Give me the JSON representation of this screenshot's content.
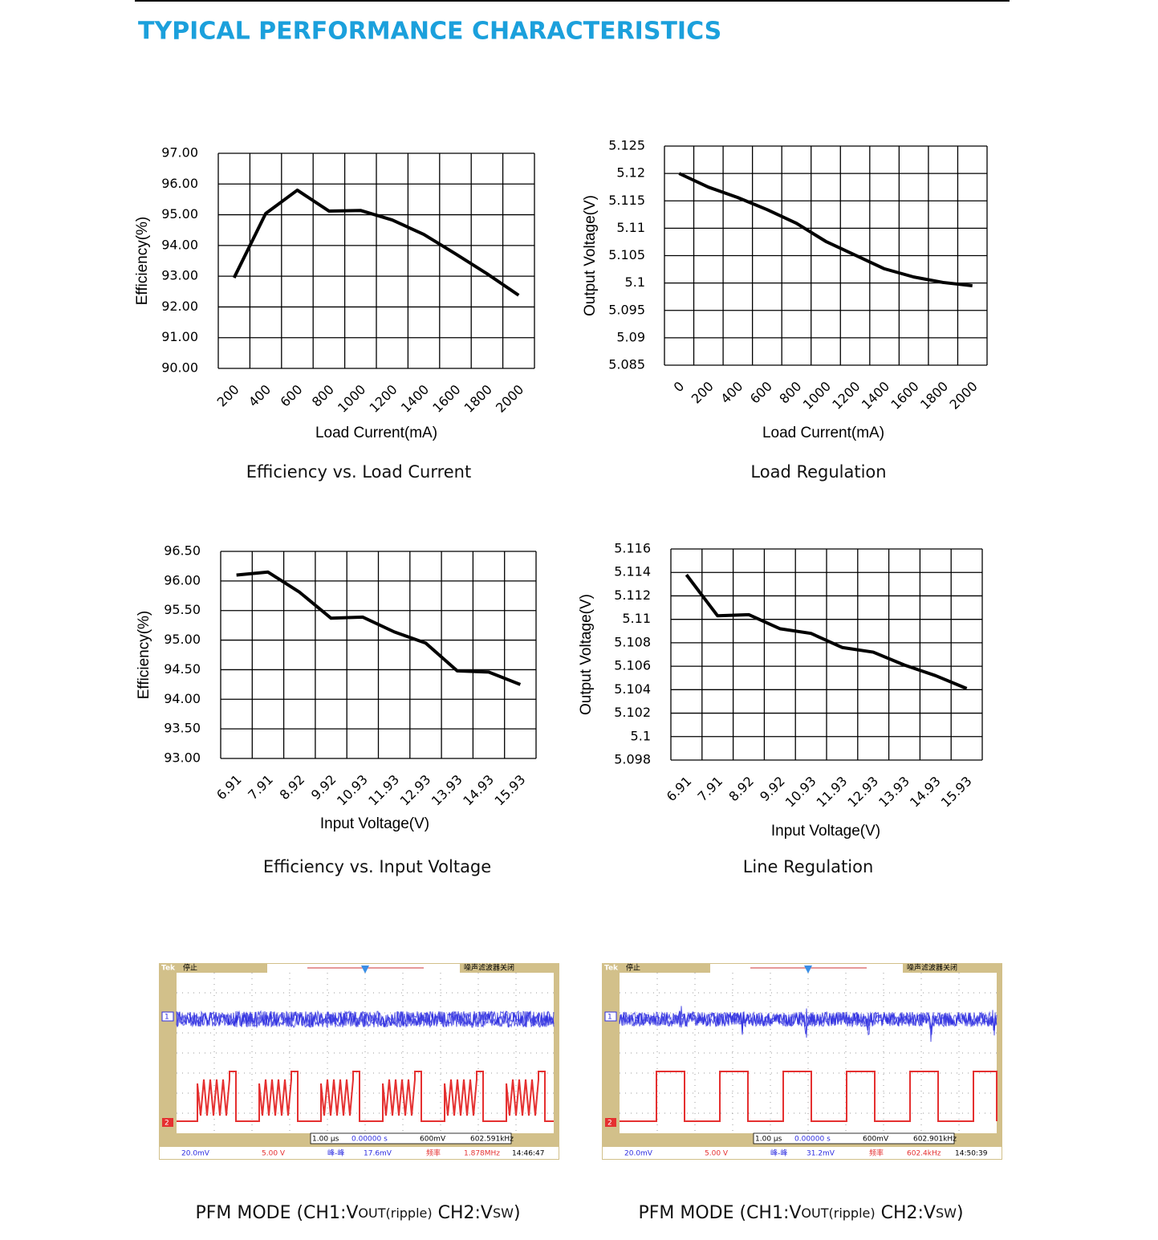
{
  "header": {
    "title": "TYPICAL PERFORMANCE CHARACTERISTICS"
  },
  "chart_data": [
    {
      "type": "line",
      "title": "Efficiency vs. Load Current",
      "x_label": "Load Current(mA)",
      "y_label": "Efficiency(%)",
      "categories": [
        "200",
        "400",
        "600",
        "800",
        "1000",
        "1200",
        "1400",
        "1600",
        "1800",
        "2000"
      ],
      "values": [
        92.95,
        95.04,
        95.8,
        95.12,
        95.14,
        94.83,
        94.36,
        93.73,
        93.08,
        92.38
      ],
      "color": "#000000",
      "ylim": [
        90,
        97
      ],
      "yticks": [
        {
          "value": 90,
          "label": "90.00"
        },
        {
          "value": 91,
          "label": "91.00"
        },
        {
          "value": 92,
          "label": "92.00"
        },
        {
          "value": 93,
          "label": "93.00"
        },
        {
          "value": 94,
          "label": "94.00"
        },
        {
          "value": 95,
          "label": "95.00"
        },
        {
          "value": 96,
          "label": "96.00"
        },
        {
          "value": 97,
          "label": "97.00"
        }
      ],
      "grid": true
    },
    {
      "type": "line",
      "title": "Load Regulation",
      "x_label": "Load Current(mA)",
      "y_label": "Output Voltage(V)",
      "categories": [
        "0",
        "200",
        "400",
        "600",
        "800",
        "1000",
        "1200",
        "1400",
        "1600",
        "1800",
        "2000"
      ],
      "values": [
        5.12,
        5.1175,
        5.1156,
        5.1134,
        5.1109,
        5.1076,
        5.1051,
        5.1026,
        5.1011,
        5.1001,
        5.0995
      ],
      "color": "#000000",
      "ylim": [
        5.085,
        5.125
      ],
      "yticks": [
        5.085,
        5.09,
        5.095,
        5.1,
        5.105,
        5.11,
        5.115,
        5.12,
        5.125
      ],
      "grid": true
    },
    {
      "type": "line",
      "title": "Efficiency vs. Input Voltage",
      "x_label": "Input Voltage(V)",
      "y_label": "Efficiency(%)",
      "categories": [
        "6.91",
        "7.91",
        "8.92",
        "9.92",
        "10.93",
        "11.93",
        "12.93",
        "13.93",
        "14.93",
        "15.93"
      ],
      "values": [
        96.1,
        96.15,
        95.81,
        95.37,
        95.39,
        95.14,
        94.95,
        94.48,
        94.46,
        94.25
      ],
      "color": "#000000",
      "ylim": [
        93,
        96.5
      ],
      "yticks": [
        {
          "value": 93,
          "label": "93.00"
        },
        {
          "value": 93.5,
          "label": "93.50"
        },
        {
          "value": 94,
          "label": "94.00"
        },
        {
          "value": 94.5,
          "label": "94.50"
        },
        {
          "value": 95,
          "label": "95.00"
        },
        {
          "value": 95.5,
          "label": "95.50"
        },
        {
          "value": 96,
          "label": "96.00"
        },
        {
          "value": 96.5,
          "label": "96.50"
        }
      ],
      "grid": true
    },
    {
      "type": "line",
      "title": "Line Regulation",
      "x_label": "Input Voltage(V)",
      "y_label": "Output Voltage(V)",
      "categories": [
        "6.91",
        "7.91",
        "8.92",
        "9.92",
        "10.93",
        "11.93",
        "12.93",
        "13.93",
        "14.93",
        "15.93"
      ],
      "values": [
        5.1138,
        5.1103,
        5.1104,
        5.1092,
        5.1088,
        5.1076,
        5.1072,
        5.1061,
        5.1052,
        5.1041
      ],
      "color": "#000000",
      "ylim": [
        5.098,
        5.116
      ],
      "yticks": [
        5.098,
        5.1,
        5.102,
        5.104,
        5.106,
        5.108,
        5.11,
        5.112,
        5.114,
        5.116
      ],
      "grid": true
    }
  ],
  "scopes": [
    {
      "brand": "Tek",
      "status": "停止",
      "filter": "噪声滤波器关闭",
      "ch1_marker": "1",
      "ch2_marker": "2",
      "time_div": "1.00 µs",
      "delay": "0.00000 s",
      "trigger": "600mV",
      "trigger_freq": "602.591kHz",
      "ch1_scale": "20.0mV",
      "ch2_scale": "5.00 V",
      "meas1_label": "峰-峰",
      "meas1_value": "17.6mV",
      "meas2_label": "频率",
      "meas2_value": "1.878MHz",
      "clock": "14:46:47",
      "caption": [
        "PFM MODE (CH1:V",
        "OUT(ripple)",
        " CH2:V",
        "SW",
        ")"
      ]
    },
    {
      "brand": "Tek",
      "status": "停止",
      "filter": "噪声滤波器关闭",
      "ch1_marker": "1",
      "ch2_marker": "2",
      "time_div": "1.00 µs",
      "delay": "0.00000 s",
      "trigger": "600mV",
      "trigger_freq": "602.901kHz",
      "ch1_scale": "20.0mV",
      "ch2_scale": "5.00 V",
      "meas1_label": "峰-峰",
      "meas1_value": "31.2mV",
      "meas2_label": "频率",
      "meas2_value": "602.4kHz",
      "clock": "14:50:39",
      "caption": [
        "PFM MODE (CH1:V",
        "OUT(ripple)",
        " CH2:V",
        "SW",
        ")"
      ]
    }
  ]
}
